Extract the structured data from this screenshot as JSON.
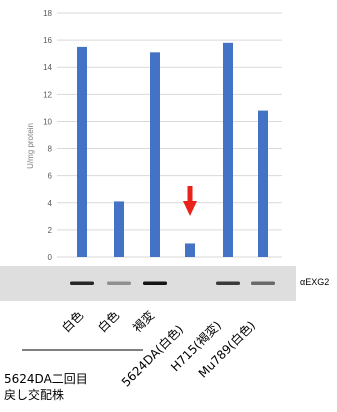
{
  "chart_data": {
    "type": "bar",
    "categories": [
      "白色",
      "白色",
      "褐変",
      "5624DA(白色)",
      "H715(褐変)",
      "Mu789(白色)"
    ],
    "values": [
      15.5,
      4.1,
      15.1,
      1.0,
      15.8,
      10.8
    ],
    "ylabel": "U/mg protein",
    "ylim": [
      0,
      18
    ],
    "yticks": [
      "0",
      "2",
      "4",
      "6",
      "8",
      "10",
      "12",
      "14",
      "16",
      "18"
    ],
    "grid": true,
    "bar_color": "#4472c4",
    "arrow_color": "#e8231a",
    "arrow_target_category": 3,
    "blot": {
      "label": "αEXG2",
      "band_intensity": [
        0.9,
        0.35,
        1.0,
        0.0,
        0.8,
        0.55
      ]
    }
  },
  "footnote": {
    "line1": "5624DA二回目",
    "line2": "戻し交配株"
  }
}
